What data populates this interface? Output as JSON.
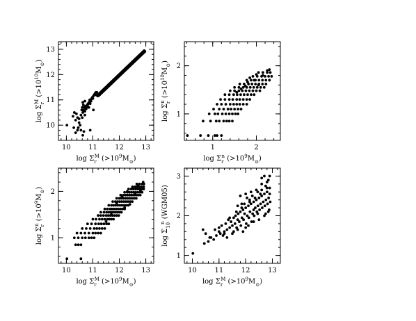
{
  "chart_data": [
    {
      "type": "scatter",
      "xlabel": {
        "base": "log Σ",
        "sub": "r",
        "sup": "M",
        "rest": " (>10",
        "exp": "9",
        "unit": "M",
        "sun": "⊙",
        "close": ")"
      },
      "ylabel": {
        "base": "log Σ",
        "sub": "r",
        "sup": "M",
        "rest": " (>10",
        "exp": "10",
        "unit": "M",
        "sun": "⊙",
        "close": ")"
      },
      "xlim": [
        9.7,
        13.3
      ],
      "ylim": [
        9.4,
        13.3
      ],
      "xticks": [
        10,
        11,
        12,
        13
      ],
      "yticks": [
        10,
        11,
        12,
        13
      ],
      "xminor": 0.2,
      "yminor": 0.2,
      "series": [
        {
          "x": [
            10.02,
            10.28,
            10.35,
            10.42,
            10.48,
            10.52,
            10.55,
            10.58,
            10.6,
            10.62,
            10.64,
            10.66,
            10.68,
            10.7,
            10.72,
            10.74,
            10.76,
            10.78,
            10.8,
            10.82,
            10.85,
            10.88,
            10.9,
            10.92,
            10.95,
            10.98,
            11.0,
            11.02,
            11.05,
            11.08,
            11.1,
            11.12,
            11.15,
            10.35,
            10.45,
            10.55,
            10.6,
            10.62,
            10.66,
            10.7,
            10.75,
            10.8,
            10.85,
            10.9,
            10.93,
            11.02,
            11.12,
            11.18,
            10.25,
            10.3,
            10.38,
            10.42,
            10.48,
            10.62,
            10.66,
            10.7,
            10.9
          ],
          "y": [
            10.0,
            9.9,
            10.2,
            9.8,
            10.1,
            10.0,
            10.4,
            10.6,
            10.7,
            10.5,
            10.8,
            10.6,
            10.7,
            10.55,
            10.75,
            10.65,
            10.7,
            10.8,
            10.75,
            10.85,
            10.9,
            11.0,
            10.95,
            11.0,
            11.05,
            11.1,
            11.05,
            11.15,
            11.2,
            11.25,
            11.2,
            11.3,
            11.3,
            9.7,
            9.9,
            9.8,
            10.3,
            9.6,
            9.75,
            10.4,
            10.65,
            10.8,
            10.7,
            10.85,
            10.95,
            10.6,
            11.2,
            11.15,
            10.35,
            10.5,
            10.45,
            10.3,
            10.25,
            10.9,
            10.55,
            10.95,
            9.8
          ]
        }
      ]
    },
    {
      "type": "scatter",
      "xlabel": {
        "base": "log Σ",
        "sub": "r",
        "sup": "n",
        "rest": " (>10",
        "exp": "9",
        "unit": "M",
        "sun": "⊙",
        "close": ")"
      },
      "ylabel": {
        "base": "log Σ",
        "sub": "r",
        "sup": "n",
        "rest": " (>10",
        "exp": "10",
        "unit": "M",
        "sun": "⊙",
        "close": ")"
      },
      "xlim": [
        0.35,
        2.55
      ],
      "ylim": [
        0.45,
        2.5
      ],
      "xticks": [
        1,
        2
      ],
      "yticks": [
        1,
        2
      ],
      "xminor": 0.2,
      "yminor": 0.2,
      "series": [
        {
          "x": [
            0.42,
            0.72,
            0.9,
            1.05,
            1.1,
            1.2,
            0.78,
            0.95,
            1.08,
            1.15,
            1.25,
            1.32,
            1.38,
            1.45,
            0.92,
            1.05,
            1.12,
            1.22,
            1.3,
            1.38,
            1.45,
            1.52,
            1.58,
            1.02,
            1.15,
            1.25,
            1.35,
            1.42,
            1.5,
            1.58,
            1.65,
            1.1,
            1.2,
            1.3,
            1.4,
            1.48,
            1.55,
            1.62,
            1.7,
            1.78,
            1.18,
            1.28,
            1.38,
            1.46,
            1.55,
            1.62,
            1.7,
            1.78,
            1.85,
            1.28,
            1.38,
            1.48,
            1.56,
            1.64,
            1.72,
            1.8,
            1.88,
            1.95,
            1.4,
            1.5,
            1.6,
            1.68,
            1.76,
            1.84,
            1.92,
            2.0,
            2.08,
            1.5,
            1.6,
            1.7,
            1.78,
            1.86,
            1.94,
            2.02,
            2.1,
            2.18,
            1.62,
            1.72,
            1.82,
            1.9,
            1.98,
            2.06,
            2.14,
            2.22,
            1.78,
            1.88,
            1.98,
            2.06,
            2.14,
            2.22,
            2.3,
            1.92,
            2.02,
            2.12,
            2.2,
            2.28,
            2.35,
            2.05,
            2.15,
            2.25,
            2.32,
            1.55,
            1.65,
            1.75,
            1.8,
            1.85,
            1.95,
            2.0,
            2.05,
            2.15,
            2.25,
            2.3
          ],
          "y": [
            0.55,
            0.55,
            0.55,
            0.55,
            0.55,
            0.55,
            0.85,
            0.85,
            0.85,
            0.85,
            0.85,
            0.85,
            0.85,
            0.85,
            1.0,
            1.0,
            1.0,
            1.0,
            1.0,
            1.0,
            1.0,
            1.0,
            1.0,
            1.1,
            1.1,
            1.1,
            1.1,
            1.1,
            1.1,
            1.1,
            1.1,
            1.2,
            1.2,
            1.2,
            1.2,
            1.2,
            1.2,
            1.2,
            1.2,
            1.2,
            1.3,
            1.3,
            1.3,
            1.3,
            1.3,
            1.3,
            1.3,
            1.3,
            1.3,
            1.4,
            1.4,
            1.4,
            1.4,
            1.4,
            1.4,
            1.4,
            1.4,
            1.4,
            1.48,
            1.48,
            1.48,
            1.48,
            1.48,
            1.48,
            1.48,
            1.48,
            1.48,
            1.55,
            1.55,
            1.55,
            1.55,
            1.55,
            1.55,
            1.55,
            1.55,
            1.55,
            1.62,
            1.62,
            1.62,
            1.62,
            1.62,
            1.62,
            1.62,
            1.62,
            1.7,
            1.7,
            1.7,
            1.7,
            1.7,
            1.7,
            1.7,
            1.78,
            1.78,
            1.78,
            1.78,
            1.78,
            1.78,
            1.86,
            1.86,
            1.86,
            1.86,
            1.45,
            1.52,
            1.58,
            1.66,
            1.75,
            1.7,
            1.82,
            1.6,
            1.8,
            1.9,
            1.92
          ]
        }
      ]
    },
    {
      "type": "scatter",
      "xlabel": {
        "base": "log Σ",
        "sub": "r",
        "sup": "M",
        "rest": " (>10",
        "exp": "9",
        "unit": "M",
        "sun": "⊙",
        "close": ")"
      },
      "ylabel": {
        "base": "log Σ",
        "sub": "r",
        "sup": "n",
        "rest": " (>10",
        "exp": "9",
        "unit": "M",
        "sun": "⊙",
        "close": ")"
      },
      "xlim": [
        9.7,
        13.3
      ],
      "ylim": [
        0.45,
        2.5
      ],
      "xticks": [
        10,
        11,
        12,
        13
      ],
      "yticks": [
        1,
        2
      ],
      "xminor": 0.2,
      "yminor": 0.2,
      "series": [
        {
          "x": [
            10.02,
            10.55,
            10.35,
            10.45,
            10.55,
            10.3,
            10.45,
            10.6,
            10.72,
            10.85,
            10.95,
            11.05,
            10.4,
            10.55,
            10.7,
            10.85,
            11.0,
            11.1,
            11.2,
            11.3,
            10.6,
            10.75,
            10.9,
            11.05,
            11.15,
            11.25,
            11.35,
            11.45,
            10.8,
            10.95,
            11.1,
            11.22,
            11.32,
            11.42,
            11.52,
            11.6,
            11.0,
            11.12,
            11.25,
            11.35,
            11.45,
            11.55,
            11.62,
            11.7,
            11.78,
            11.2,
            11.3,
            11.4,
            11.5,
            11.58,
            11.66,
            11.74,
            11.82,
            11.9,
            11.98,
            11.3,
            11.42,
            11.52,
            11.6,
            11.68,
            11.76,
            11.84,
            11.92,
            12.0,
            12.08,
            11.45,
            11.55,
            11.65,
            11.72,
            11.8,
            11.88,
            11.96,
            12.04,
            12.12,
            12.2,
            11.6,
            11.7,
            11.78,
            11.86,
            11.94,
            12.02,
            12.1,
            12.18,
            12.26,
            12.34,
            11.75,
            11.85,
            11.93,
            12.01,
            12.09,
            12.17,
            12.25,
            12.33,
            12.41,
            12.49,
            11.9,
            12.0,
            12.08,
            12.16,
            12.24,
            12.32,
            12.4,
            12.48,
            12.56,
            12.64,
            12.05,
            12.15,
            12.23,
            12.31,
            12.39,
            12.47,
            12.55,
            12.63,
            12.71,
            12.79,
            12.2,
            12.3,
            12.38,
            12.46,
            12.54,
            12.62,
            12.7,
            12.78,
            12.86,
            12.35,
            12.45,
            12.53,
            12.61,
            12.69,
            12.77,
            12.85,
            12.92,
            12.5,
            12.6,
            12.68,
            12.76,
            12.84,
            12.92,
            12.66,
            12.76,
            12.86,
            12.93,
            11.9,
            12.1,
            12.3,
            12.5,
            12.7,
            12.9,
            11.5,
            11.7,
            12.2,
            12.4,
            12.6,
            12.8
          ],
          "y": [
            0.55,
            0.55,
            0.85,
            0.85,
            0.85,
            1.0,
            1.0,
            1.0,
            1.0,
            1.0,
            1.0,
            1.0,
            1.1,
            1.1,
            1.1,
            1.1,
            1.1,
            1.1,
            1.1,
            1.1,
            1.2,
            1.2,
            1.2,
            1.2,
            1.2,
            1.2,
            1.2,
            1.2,
            1.3,
            1.3,
            1.3,
            1.3,
            1.3,
            1.3,
            1.3,
            1.3,
            1.4,
            1.4,
            1.4,
            1.4,
            1.4,
            1.4,
            1.4,
            1.4,
            1.4,
            1.48,
            1.48,
            1.48,
            1.48,
            1.48,
            1.48,
            1.48,
            1.48,
            1.48,
            1.48,
            1.55,
            1.55,
            1.55,
            1.55,
            1.55,
            1.55,
            1.55,
            1.55,
            1.55,
            1.55,
            1.62,
            1.62,
            1.62,
            1.62,
            1.62,
            1.62,
            1.62,
            1.62,
            1.62,
            1.62,
            1.7,
            1.7,
            1.7,
            1.7,
            1.7,
            1.7,
            1.7,
            1.7,
            1.7,
            1.7,
            1.78,
            1.78,
            1.78,
            1.78,
            1.78,
            1.78,
            1.78,
            1.78,
            1.78,
            1.78,
            1.85,
            1.85,
            1.85,
            1.85,
            1.85,
            1.85,
            1.85,
            1.85,
            1.85,
            1.85,
            1.92,
            1.92,
            1.92,
            1.92,
            1.92,
            1.92,
            1.92,
            1.92,
            1.92,
            1.92,
            1.98,
            1.98,
            1.98,
            1.98,
            1.98,
            1.98,
            1.98,
            1.98,
            1.98,
            2.05,
            2.05,
            2.05,
            2.05,
            2.05,
            2.05,
            2.05,
            2.05,
            2.1,
            2.1,
            2.1,
            2.1,
            2.1,
            2.1,
            2.16,
            2.16,
            2.16,
            2.16,
            1.75,
            1.88,
            2.0,
            2.08,
            2.12,
            2.2,
            1.35,
            1.5,
            1.65,
            1.72,
            1.95,
            2.02
          ]
        }
      ]
    },
    {
      "type": "scatter",
      "xlabel": {
        "base": "log Σ",
        "sub": "r",
        "sup": "M",
        "rest": " (>10",
        "exp": "9",
        "unit": "M",
        "sun": "⊙",
        "close": ")"
      },
      "ylabel": {
        "base": "log Σ",
        "sub": "10",
        "sup": "n",
        "rest": " (WGM05)",
        "exp": "",
        "unit": "",
        "sun": "",
        "close": ""
      },
      "xlim": [
        9.7,
        13.3
      ],
      "ylim": [
        0.8,
        3.2
      ],
      "xticks": [
        10,
        11,
        12,
        13
      ],
      "yticks": [
        1,
        2,
        3
      ],
      "xminor": 0.2,
      "yminor": 0.2,
      "series": [
        {
          "x": [
            10.02,
            10.4,
            10.5,
            10.6,
            10.7,
            10.8,
            10.9,
            11.0,
            11.05,
            11.1,
            11.15,
            11.2,
            11.25,
            11.3,
            11.35,
            11.4,
            11.45,
            11.5,
            11.55,
            11.6,
            11.62,
            11.66,
            11.7,
            11.72,
            11.76,
            11.8,
            11.82,
            11.86,
            11.9,
            11.92,
            11.96,
            12.0,
            12.02,
            12.06,
            12.1,
            12.12,
            12.16,
            12.2,
            12.22,
            12.26,
            12.3,
            12.32,
            12.36,
            12.4,
            12.42,
            12.46,
            12.5,
            12.52,
            12.56,
            12.6,
            12.62,
            12.66,
            12.7,
            12.72,
            12.76,
            12.8,
            12.82,
            12.86,
            12.9,
            12.92,
            10.45,
            10.65,
            10.85,
            11.0,
            11.2,
            11.4,
            11.55,
            11.7,
            11.85,
            12.0,
            12.15,
            12.3,
            12.45,
            12.6,
            12.75,
            12.85,
            11.3,
            11.5,
            11.7,
            11.9,
            12.1,
            12.3,
            12.5,
            12.7,
            12.88,
            11.8,
            12.0,
            12.2,
            12.4,
            12.6,
            12.8,
            12.9,
            12.6,
            12.7,
            12.8,
            12.9,
            12.75,
            12.85,
            12.05,
            12.25,
            12.45,
            11.95,
            12.15,
            12.35,
            12.55,
            11.65,
            11.85
          ],
          "y": [
            1.05,
            1.65,
            1.55,
            1.35,
            1.45,
            1.4,
            1.5,
            1.6,
            1.55,
            1.75,
            1.5,
            1.6,
            1.8,
            1.65,
            1.9,
            1.7,
            1.85,
            1.75,
            1.95,
            1.8,
            2.0,
            1.7,
            1.9,
            2.05,
            1.85,
            2.1,
            1.75,
            1.95,
            2.15,
            1.9,
            2.05,
            2.2,
            1.8,
            2.0,
            2.25,
            1.95,
            2.1,
            2.3,
            1.85,
            2.05,
            2.35,
            2.0,
            2.2,
            2.4,
            2.1,
            2.25,
            2.45,
            2.15,
            2.3,
            2.5,
            2.2,
            2.35,
            2.55,
            2.25,
            2.4,
            2.6,
            2.3,
            2.45,
            2.7,
            2.35,
            1.3,
            1.45,
            1.65,
            1.7,
            1.55,
            1.95,
            1.6,
            2.25,
            2.3,
            1.7,
            2.4,
            2.15,
            2.05,
            2.65,
            2.75,
            2.9,
            1.45,
            1.55,
            1.65,
            1.6,
            1.75,
            1.85,
            1.9,
            2.0,
            2.15,
            2.5,
            2.55,
            2.6,
            2.65,
            2.8,
            2.85,
            3.0,
            2.95,
            3.0,
            2.7,
            2.55,
            2.05,
            2.1,
            2.45,
            2.5,
            2.6,
            2.3,
            2.35,
            2.45,
            2.55,
            2.1,
            2.2
          ]
        }
      ]
    }
  ]
}
